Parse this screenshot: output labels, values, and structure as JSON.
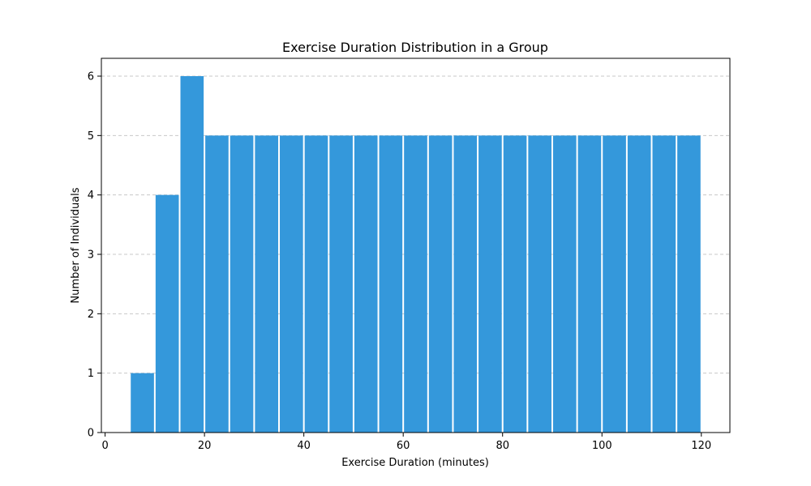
{
  "chart_data": {
    "type": "bar",
    "title": "Exercise Duration Distribution in a Group",
    "xlabel": "Exercise Duration (minutes)",
    "ylabel": "Number of Individuals",
    "bin_width": 5,
    "bins": [
      {
        "start": 5,
        "end": 10,
        "value": 1
      },
      {
        "start": 10,
        "end": 15,
        "value": 4
      },
      {
        "start": 15,
        "end": 20,
        "value": 6
      },
      {
        "start": 20,
        "end": 25,
        "value": 5
      },
      {
        "start": 25,
        "end": 30,
        "value": 5
      },
      {
        "start": 30,
        "end": 35,
        "value": 5
      },
      {
        "start": 35,
        "end": 40,
        "value": 5
      },
      {
        "start": 40,
        "end": 45,
        "value": 5
      },
      {
        "start": 45,
        "end": 50,
        "value": 5
      },
      {
        "start": 50,
        "end": 55,
        "value": 5
      },
      {
        "start": 55,
        "end": 60,
        "value": 5
      },
      {
        "start": 60,
        "end": 65,
        "value": 5
      },
      {
        "start": 65,
        "end": 70,
        "value": 5
      },
      {
        "start": 70,
        "end": 75,
        "value": 5
      },
      {
        "start": 75,
        "end": 80,
        "value": 5
      },
      {
        "start": 80,
        "end": 85,
        "value": 5
      },
      {
        "start": 85,
        "end": 90,
        "value": 5
      },
      {
        "start": 90,
        "end": 95,
        "value": 5
      },
      {
        "start": 95,
        "end": 100,
        "value": 5
      },
      {
        "start": 100,
        "end": 105,
        "value": 5
      },
      {
        "start": 105,
        "end": 110,
        "value": 5
      },
      {
        "start": 110,
        "end": 115,
        "value": 5
      },
      {
        "start": 115,
        "end": 120,
        "value": 5
      }
    ],
    "xlim": [
      -0.75,
      125.75
    ],
    "ylim": [
      0,
      6.3
    ],
    "x_ticks": [
      0,
      20,
      40,
      60,
      80,
      100,
      120
    ],
    "y_ticks": [
      0,
      1,
      2,
      3,
      4,
      5,
      6
    ],
    "grid": "y-axis dashed",
    "legend": "none",
    "colors": {
      "bar": "#3498db",
      "bar_edge": "#ffffff",
      "grid": "#c8c8c8",
      "axis": "#000000"
    }
  }
}
